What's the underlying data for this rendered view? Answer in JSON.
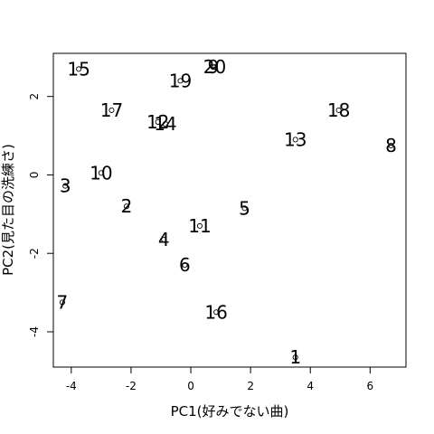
{
  "chart_data": {
    "type": "scatter",
    "xlabel": "PC1(好みでない曲)",
    "ylabel": "PC2(見た目の洗練さ)",
    "xlim": [
      -4.6,
      7.2
    ],
    "ylim": [
      -4.9,
      3.1
    ],
    "xticks": [
      -4,
      -2,
      0,
      2,
      4,
      6
    ],
    "yticks": [
      -4,
      -2,
      0,
      2
    ],
    "tick_labels_x": [
      "-4",
      "-2",
      "0",
      "2",
      "4",
      "6"
    ],
    "tick_labels_y": [
      "-4",
      "-2",
      "0",
      "2"
    ],
    "grid": false,
    "points": [
      {
        "label": "1",
        "x": 3.5,
        "y": -4.65
      },
      {
        "label": "2",
        "x": -2.15,
        "y": -0.8
      },
      {
        "label": "3",
        "x": -4.2,
        "y": -0.28
      },
      {
        "label": "4",
        "x": -0.9,
        "y": -1.65
      },
      {
        "label": "5",
        "x": 1.8,
        "y": -0.85
      },
      {
        "label": "6",
        "x": -0.2,
        "y": -2.3
      },
      {
        "label": "7",
        "x": -4.3,
        "y": -3.25
      },
      {
        "label": "8",
        "x": 6.7,
        "y": 0.75
      },
      {
        "label": "9",
        "x": 0.75,
        "y": 2.75
      },
      {
        "label": "10",
        "x": -3.0,
        "y": 0.05
      },
      {
        "label": "11",
        "x": 0.3,
        "y": -1.3
      },
      {
        "label": "12",
        "x": -1.1,
        "y": 1.35
      },
      {
        "label": "13",
        "x": 3.5,
        "y": 0.9
      },
      {
        "label": "14",
        "x": -0.85,
        "y": 1.3
      },
      {
        "label": "15",
        "x": -3.75,
        "y": 2.7
      },
      {
        "label": "16",
        "x": 0.85,
        "y": -3.5
      },
      {
        "label": "17",
        "x": -2.65,
        "y": 1.65
      },
      {
        "label": "18",
        "x": 4.95,
        "y": 1.65
      },
      {
        "label": "19",
        "x": -0.35,
        "y": 2.4
      },
      {
        "label": "20",
        "x": 0.8,
        "y": 2.75
      }
    ]
  }
}
